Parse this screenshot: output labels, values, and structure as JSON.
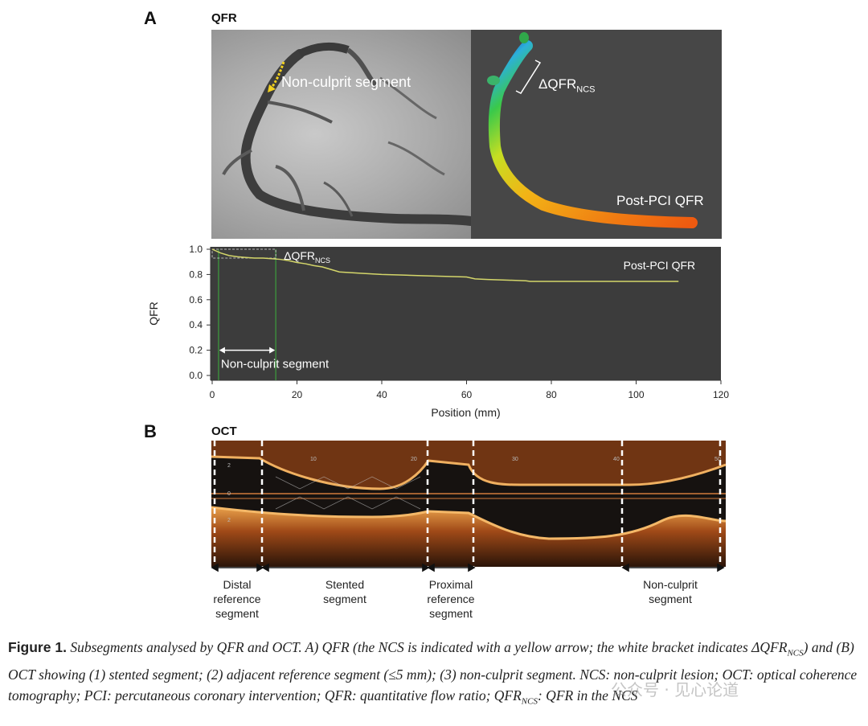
{
  "panelA": {
    "letter": "A",
    "title": "QFR",
    "angio_label": "Non-culprit segment",
    "recon_label_prefix": "ΔQFR",
    "recon_label_sub": "NCS",
    "recon_post_label": "Post-PCI QFR"
  },
  "chart_data": {
    "type": "line",
    "title": "",
    "xlabel": "Position (mm)",
    "ylabel": "QFR",
    "xlim": [
      0,
      120
    ],
    "ylim": [
      0,
      1.0
    ],
    "x_ticks": [
      0,
      20,
      40,
      60,
      80,
      100,
      120
    ],
    "y_ticks": [
      0.0,
      0.2,
      0.4,
      0.6,
      0.8,
      1.0
    ],
    "x_tick_labels": [
      "0",
      "20",
      "40",
      "60",
      "80",
      "100",
      "120"
    ],
    "y_tick_labels": [
      "0.0",
      "0.2",
      "0.4",
      "0.6",
      "0.8",
      "1.0"
    ],
    "series": [
      {
        "name": "Post-PCI QFR",
        "color": "#d4d66a",
        "x": [
          0,
          2,
          4,
          6,
          8,
          10,
          12,
          14,
          16,
          18,
          20,
          22,
          24,
          26,
          28,
          30,
          35,
          40,
          45,
          50,
          55,
          60,
          62,
          65,
          70,
          74,
          75,
          80,
          90,
          100,
          110
        ],
        "y": [
          1.0,
          0.97,
          0.95,
          0.94,
          0.935,
          0.93,
          0.93,
          0.925,
          0.92,
          0.91,
          0.895,
          0.885,
          0.87,
          0.86,
          0.84,
          0.82,
          0.81,
          0.8,
          0.795,
          0.79,
          0.785,
          0.78,
          0.765,
          0.76,
          0.755,
          0.75,
          0.745,
          0.745,
          0.745,
          0.745,
          0.745
        ]
      }
    ],
    "annotations": {
      "delta_label_prefix": "ΔQFR",
      "delta_label_sub": "NCS",
      "series_label": "Post-PCI QFR",
      "segment_label": "Non-culprit segment",
      "segment_start": 1.5,
      "segment_end": 15
    }
  },
  "panelB": {
    "letter": "B",
    "title": "OCT",
    "depth_labels": [
      "2",
      "0",
      "2"
    ],
    "position_labels": [
      "10",
      "20",
      "30",
      "40",
      "50"
    ],
    "segments": [
      {
        "line1": "Distal",
        "line2": "reference",
        "line3": "segment"
      },
      {
        "line1": "Stented",
        "line2": "segment",
        "line3": ""
      },
      {
        "line1": "Proximal",
        "line2": "reference",
        "line3": "segment"
      },
      {
        "line1": "Non-culprit",
        "line2": "segment",
        "line3": ""
      }
    ]
  },
  "caption": {
    "fig_label": "Figure 1.",
    "text_1": "Subsegments analysed by QFR and OCT. A) QFR (the NCS is indicated with a yellow arrow; the white bracket indicates ΔQFR",
    "sub_1": "NCS",
    "text_2": ") and (B) OCT showing (1) stented segment; (2) adjacent reference segment (≤5 mm); (3) non-culprit segment. NCS: non-culprit lesion; OCT: optical coherence tomography; PCI: percutaneous coronary intervention; QFR: quantitative flow ratio; QFR",
    "sub_2": "NCS",
    "text_3": ": QFR in the NCS"
  },
  "watermark": "公众号 · 见心论道"
}
